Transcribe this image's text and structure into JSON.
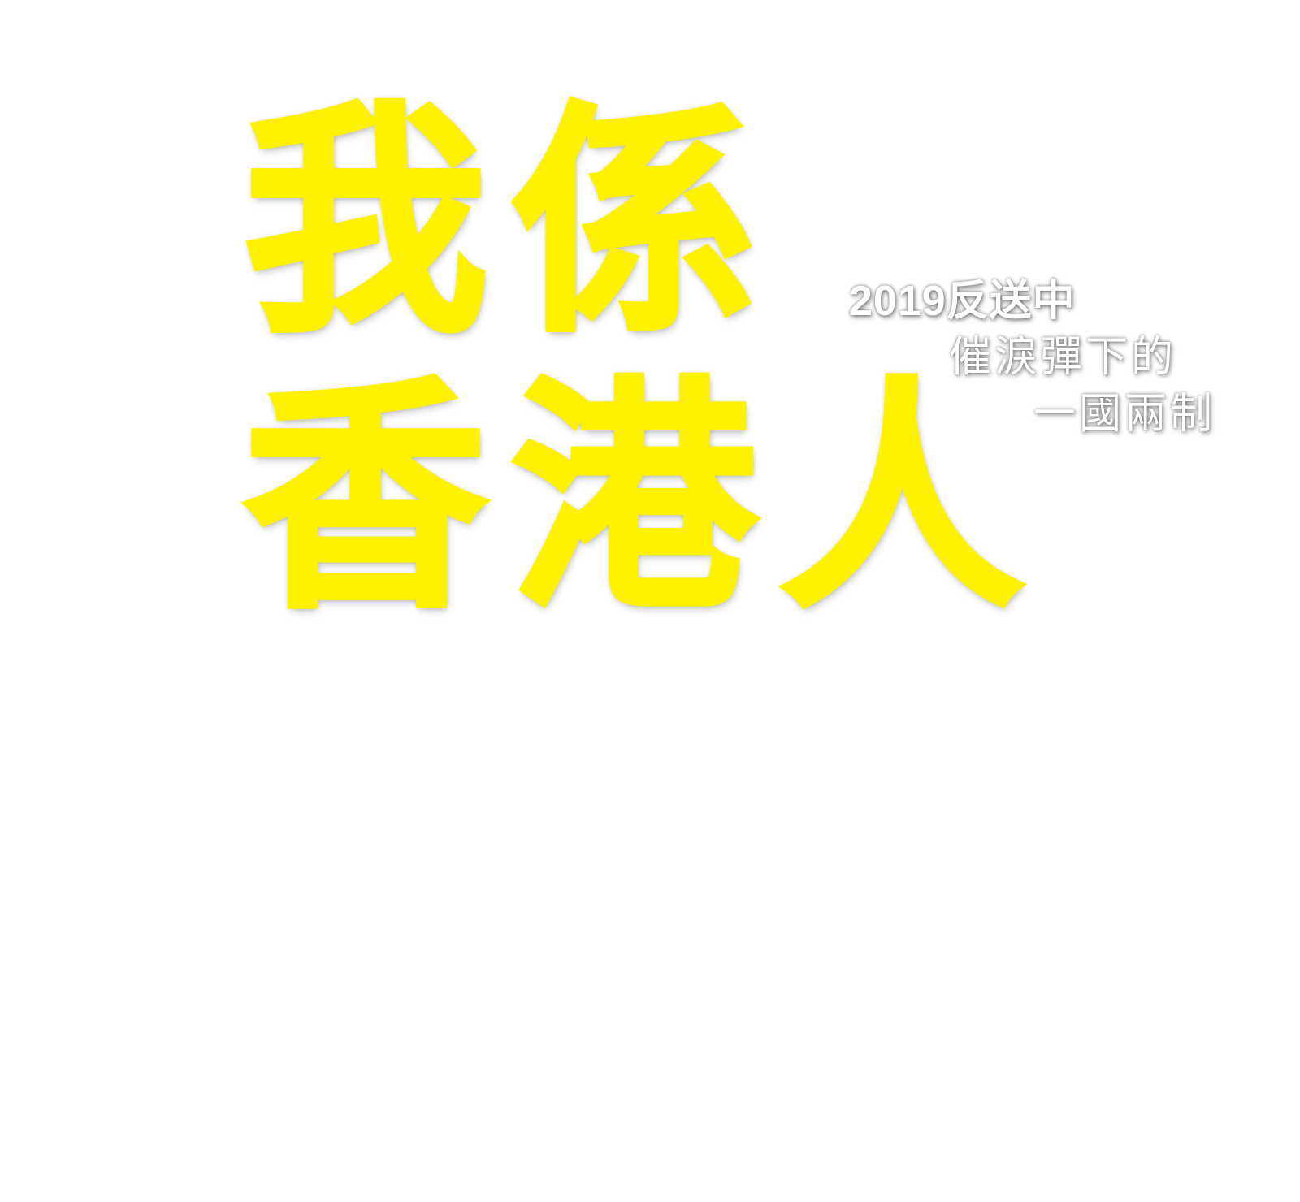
{
  "headline": {
    "line1": [
      "我",
      "係"
    ],
    "line2": [
      "香",
      "港",
      "人"
    ]
  },
  "captions": {
    "line1": "2019反送中",
    "line2": "催淚彈下的",
    "line3": "一國兩制"
  },
  "colors": {
    "background": "#ffffff",
    "headline": "#fff200",
    "caption": "#ffffff"
  }
}
